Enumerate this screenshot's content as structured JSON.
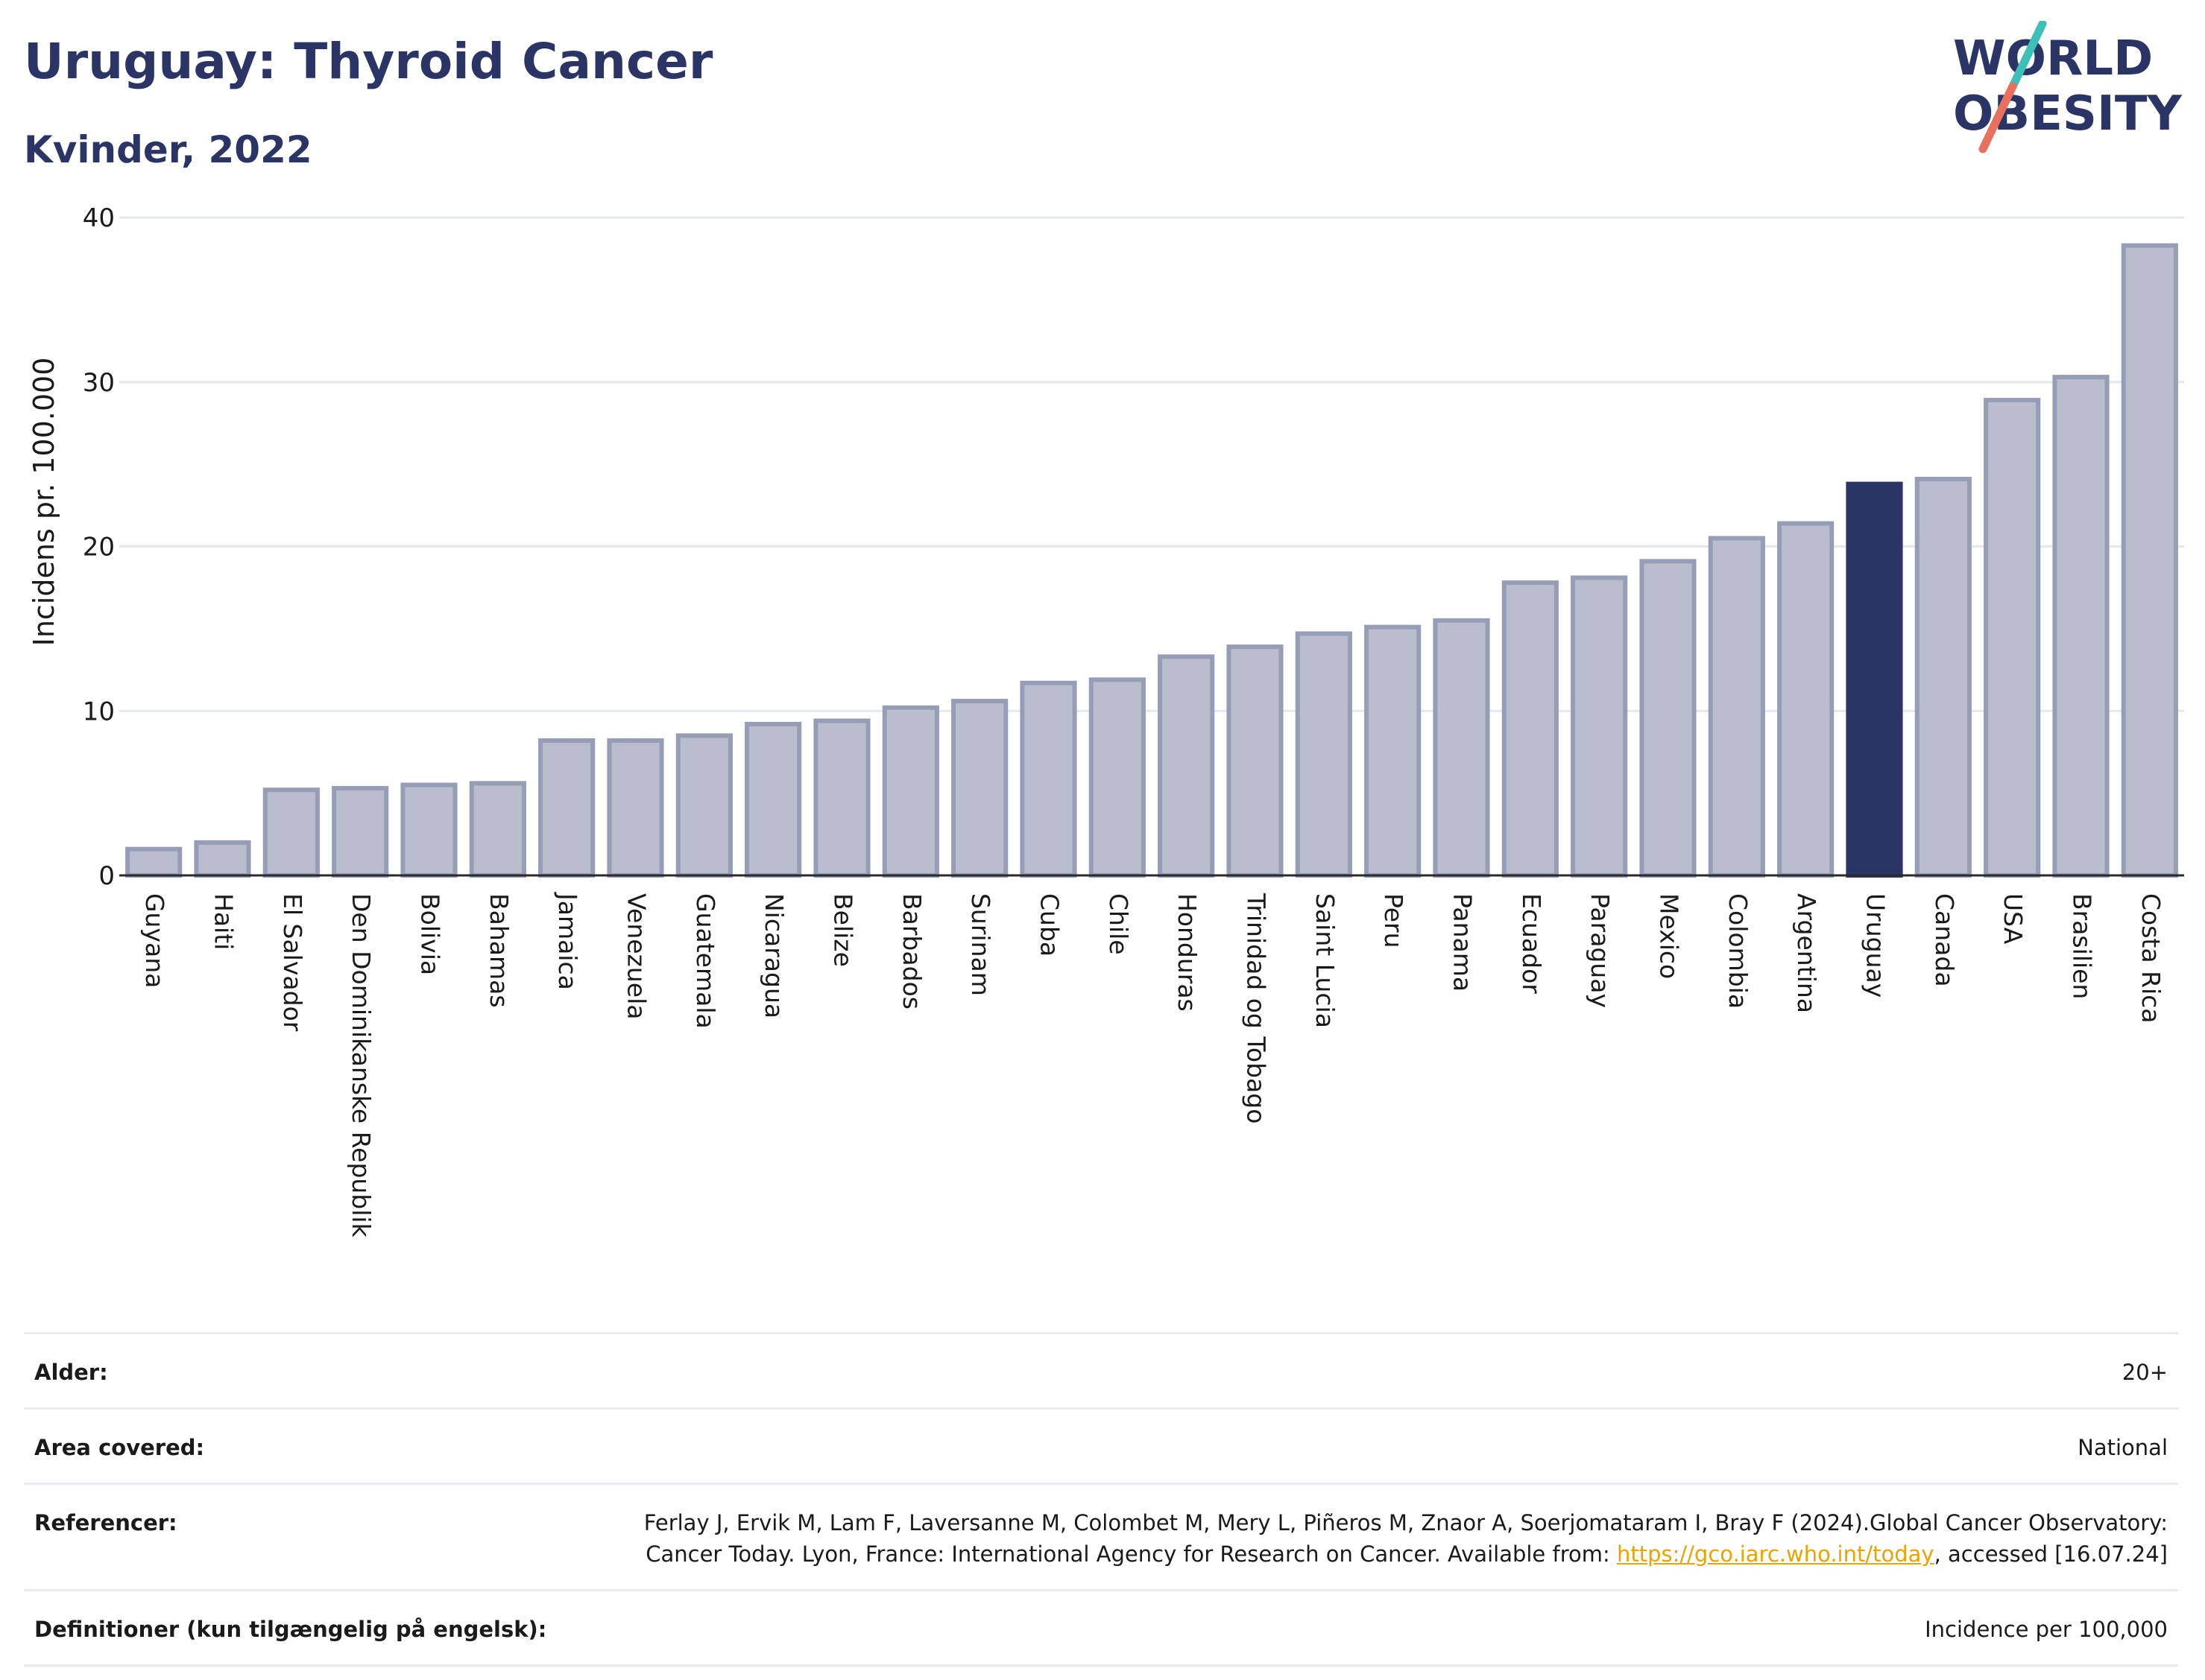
{
  "header": {
    "title": "Uruguay: Thyroid Cancer",
    "subtitle": "Kvinder, 2022"
  },
  "logo": {
    "line1": "WORLD",
    "line2": "OBESITY",
    "brand_color": "#2b3565",
    "slash_colors": [
      "#3cc0b8",
      "#e8705e"
    ]
  },
  "chart_data": {
    "type": "bar",
    "ylabel": "Incidens pr. 100.000",
    "ylim": [
      0,
      40
    ],
    "yticks": [
      0,
      10,
      20,
      30,
      40
    ],
    "grid": true,
    "highlight": "Uruguay",
    "colors": {
      "bar": "#b9bdcd",
      "bar_edge": "#979db7",
      "highlight": "#2b3565"
    },
    "categories": [
      "Guyana",
      "Haiti",
      "El Salvador",
      "Den Dominikanske Republik",
      "Bolivia",
      "Bahamas",
      "Jamaica",
      "Venezuela",
      "Guatemala",
      "Nicaragua",
      "Belize",
      "Barbados",
      "Surinam",
      "Cuba",
      "Chile",
      "Honduras",
      "Trinidad og Tobago",
      "Saint Lucia",
      "Peru",
      "Panama",
      "Ecuador",
      "Paraguay",
      "Mexico",
      "Colombia",
      "Argentina",
      "Uruguay",
      "Canada",
      "USA",
      "Brasilien",
      "Costa Rica"
    ],
    "values": [
      1.6,
      2.0,
      5.2,
      5.3,
      5.5,
      5.6,
      8.2,
      8.2,
      8.5,
      9.2,
      9.4,
      10.2,
      10.6,
      11.7,
      11.9,
      13.3,
      13.9,
      14.7,
      15.1,
      15.5,
      17.8,
      18.1,
      19.1,
      20.5,
      21.4,
      23.8,
      24.1,
      28.9,
      30.3,
      38.3
    ]
  },
  "meta": [
    {
      "key": "Alder:",
      "value": "20+"
    },
    {
      "key": "Area covered:",
      "value": "National"
    },
    {
      "key": "Referencer:",
      "value_pre": "Ferlay J, Ervik M, Lam F, Laversanne M, Colombet M, Mery L, Piñeros M, Znaor A, Soerjomataram I, Bray F (2024).Global Cancer Observatory: Cancer Today. Lyon, France: International Agency for Research on Cancer. Available from: ",
      "link": "https://gco.iarc.who.int/today",
      "value_post": ", accessed [16.07.24]"
    },
    {
      "key": "Definitioner (kun tilgængelig på engelsk):",
      "value": "Incidence per 100,000"
    }
  ]
}
